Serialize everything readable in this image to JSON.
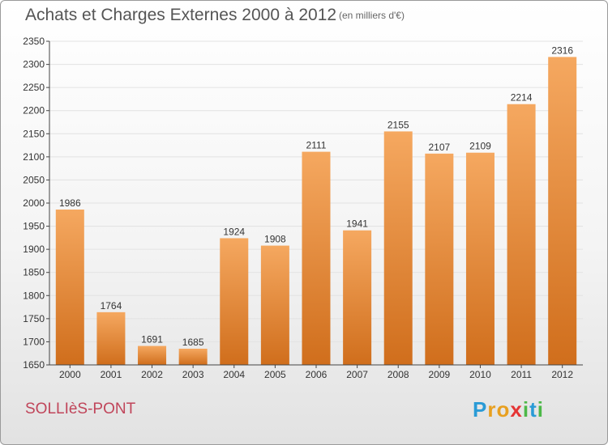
{
  "title": "Achats et Charges Externes 2000 à 2012",
  "subtitle": "(en milliers d'€)",
  "commune": "SOLLIèS-PONT",
  "logo": {
    "letters": [
      {
        "char": "P",
        "color": "#2a9bd6"
      },
      {
        "char": "r",
        "color": "#e8a020"
      },
      {
        "char": "o",
        "color": "#e8a020"
      },
      {
        "char": "x",
        "color": "#e53434"
      },
      {
        "char": "i",
        "color": "#4cb848"
      },
      {
        "char": "t",
        "color": "#2a9bd6"
      },
      {
        "char": "i",
        "color": "#4cb848"
      }
    ]
  },
  "colors": {
    "bar_top": "#f5a860",
    "bar_bottom": "#d06e1c",
    "grid": "#e2e2e2",
    "axis": "#444444"
  },
  "chart_data": {
    "type": "bar",
    "categories": [
      "2000",
      "2001",
      "2002",
      "2003",
      "2004",
      "2005",
      "2006",
      "2007",
      "2008",
      "2009",
      "2010",
      "2011",
      "2012"
    ],
    "values": [
      1986,
      1764,
      1691,
      1685,
      1924,
      1908,
      2111,
      1941,
      2155,
      2107,
      2109,
      2214,
      2316
    ],
    "ylim": [
      1650,
      2350
    ],
    "yticks": [
      1650,
      1700,
      1750,
      1800,
      1850,
      1900,
      1950,
      2000,
      2050,
      2100,
      2150,
      2200,
      2250,
      2300,
      2350
    ],
    "grid": true,
    "legend": "none"
  }
}
